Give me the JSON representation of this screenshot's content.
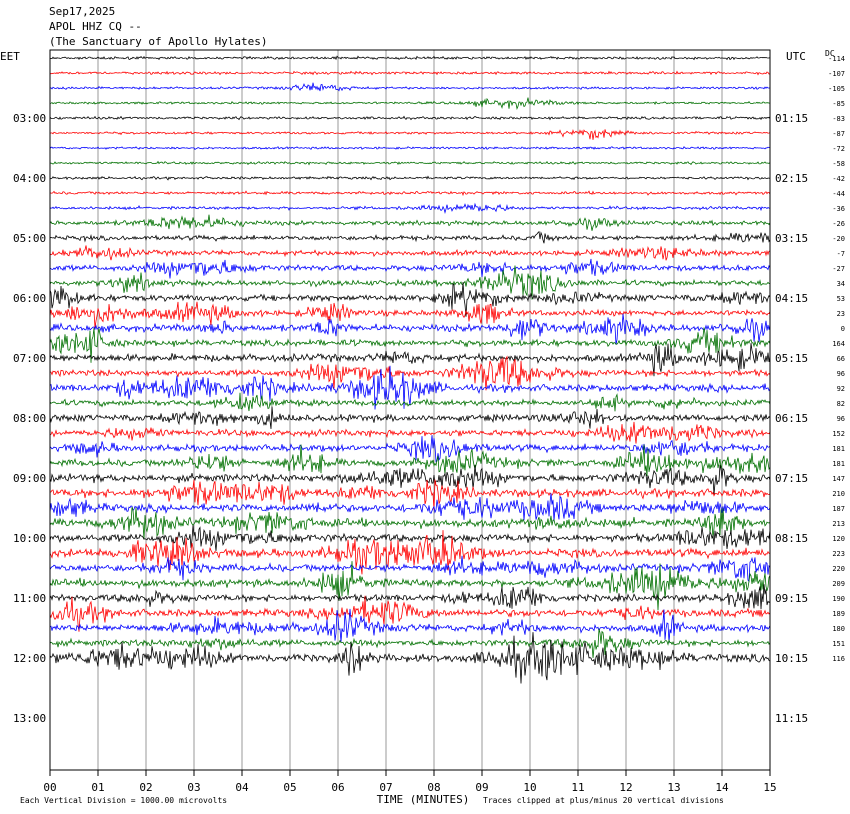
{
  "header": {
    "date": "Sep17,2025",
    "station": "APOL HHZ CQ --",
    "site": "(The Sanctuary of Apollo Hylates)"
  },
  "axes": {
    "left_tz": "EET",
    "right_tz": "UTC",
    "dc_label": "DC",
    "xlabel": "TIME (MINUTES)",
    "left_hours": [
      "03:00",
      "04:00",
      "05:00",
      "06:00",
      "07:00",
      "08:00",
      "09:00",
      "10:00",
      "11:00",
      "12:00",
      "13:00"
    ],
    "right_hours": [
      "01:15",
      "02:15",
      "03:15",
      "04:15",
      "05:15",
      "06:15",
      "07:15",
      "08:15",
      "09:15",
      "10:15",
      "11:15"
    ],
    "minute_ticks": [
      "00",
      "01",
      "02",
      "03",
      "04",
      "05",
      "06",
      "07",
      "08",
      "09",
      "10",
      "11",
      "12",
      "13",
      "14",
      "15"
    ]
  },
  "footer": {
    "left_note": "Each Vertical Division = 1000.00 microvolts",
    "right_note": "Traces clipped at plus/minus 20 vertical divisions"
  },
  "colors": {
    "trace_cycle": [
      "#000000",
      "#ff0000",
      "#0000ff",
      "#007000"
    ],
    "grid": "#808080",
    "frame": "#000000",
    "text": "#000000"
  },
  "chart_data": {
    "type": "line",
    "x_range_minutes": [
      0,
      15
    ],
    "trace_interval_minutes": 15,
    "dc_offsets": [
      -114,
      -107,
      -105,
      -85,
      -83,
      -87,
      -72,
      -58,
      -42,
      -44,
      -36,
      -26,
      -20,
      -7,
      -27,
      34,
      53,
      23,
      0,
      164,
      66,
      96,
      92,
      82,
      96,
      152,
      181,
      181,
      147,
      210,
      187,
      213,
      120,
      223,
      220,
      209,
      190,
      189,
      180,
      151,
      116
    ],
    "trace_activity": [
      0.15,
      0.15,
      0.1,
      0.1,
      0.15,
      0.12,
      0.1,
      0.12,
      0.15,
      0.18,
      0.2,
      0.4,
      0.45,
      0.5,
      0.6,
      0.6,
      0.7,
      0.6,
      0.8,
      0.7,
      0.85,
      0.7,
      0.8,
      0.65,
      0.75,
      0.7,
      0.75,
      0.8,
      0.9,
      0.95,
      0.85,
      0.95,
      0.9,
      0.95,
      0.85,
      0.9,
      0.75,
      0.85,
      0.8,
      0.7,
      1.0
    ],
    "notes": "41 traces of 15 minutes each; vertical grid every minute"
  }
}
